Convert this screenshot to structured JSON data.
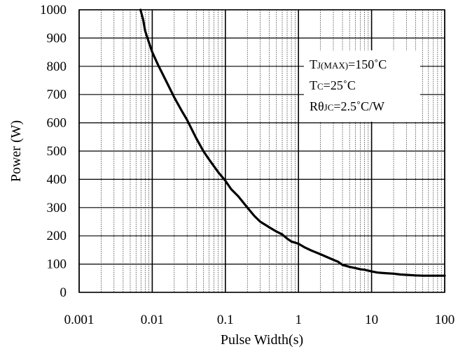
{
  "chart_data": {
    "type": "line",
    "xlabel": "Pulse Width(s)",
    "ylabel": "Power (W)",
    "xscale": "log",
    "xlim": [
      0.001,
      100
    ],
    "ylim": [
      0,
      1000
    ],
    "grid": true,
    "x_ticks": [
      0.001,
      0.01,
      0.1,
      1,
      10,
      100
    ],
    "x_tick_labels": [
      "0.001",
      "0.01",
      "0.1",
      "1",
      "10",
      "100"
    ],
    "y_ticks": [
      0,
      100,
      200,
      300,
      400,
      500,
      600,
      700,
      800,
      900,
      1000
    ],
    "y_tick_labels": [
      "0",
      "100",
      "200",
      "300",
      "400",
      "500",
      "600",
      "700",
      "800",
      "900",
      "1000"
    ],
    "annotations": {
      "line1_main": "T",
      "line1_sub": "J(MAX)",
      "line1_rest": "=150˚C",
      "line2_main": "T",
      "line2_sub": "C",
      "line2_rest": "=25˚C",
      "line3_main": "Rθ",
      "line3_sub": "JC",
      "line3_rest": "=2.5˚C/W"
    },
    "series": [
      {
        "x": [
          0.0069,
          0.0075,
          0.008,
          0.009,
          0.01,
          0.012,
          0.015,
          0.02,
          0.025,
          0.03,
          0.04,
          0.05,
          0.06,
          0.08,
          0.1,
          0.12,
          0.15,
          0.2,
          0.25,
          0.3,
          0.4,
          0.5,
          0.6,
          0.7,
          0.8,
          1,
          1.2,
          1.5,
          2,
          3,
          3.5,
          4,
          5,
          6,
          7,
          8,
          10,
          12,
          15,
          20,
          25,
          30,
          40,
          50,
          70,
          100
        ],
        "y": [
          1000,
          965,
          925,
          885,
          850,
          805,
          755,
          690,
          645,
          610,
          545,
          500,
          470,
          425,
          395,
          365,
          340,
          300,
          270,
          250,
          230,
          215,
          205,
          190,
          180,
          172,
          160,
          148,
          135,
          115,
          108,
          97,
          90,
          86,
          82,
          80,
          74,
          70,
          68,
          66,
          63,
          62,
          60,
          59,
          59,
          59
        ]
      }
    ]
  }
}
